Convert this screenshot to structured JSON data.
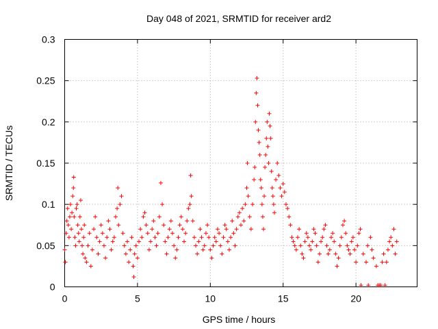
{
  "chart_data": {
    "type": "scatter",
    "title": "Day 048 of 2021, SRMTID for receiver ard2",
    "xlabel": "GPS time / hours",
    "ylabel": "SRMTID / TECUs",
    "xlim": [
      0,
      24.2
    ],
    "ylim": [
      0,
      0.3
    ],
    "x_ticks": [
      "0",
      "5",
      "10",
      "15",
      "20"
    ],
    "y_ticks": [
      "0",
      "0.05",
      "0.1",
      "0.15",
      "0.2",
      "0.25",
      "0.3"
    ],
    "grid": true,
    "marker": "plus",
    "series": [
      {
        "name": "SRMTID",
        "color": "#ff0000",
        "note": "dense scatter of ~2000 points; representative points listed below",
        "points": [
          [
            0.0,
            0.045
          ],
          [
            0.05,
            0.03
          ],
          [
            0.1,
            0.065
          ],
          [
            0.15,
            0.08
          ],
          [
            0.2,
            0.095
          ],
          [
            0.25,
            0.075
          ],
          [
            0.3,
            0.06
          ],
          [
            0.35,
            0.085
          ],
          [
            0.4,
            0.1
          ],
          [
            0.45,
            0.07
          ],
          [
            0.5,
            0.09
          ],
          [
            0.55,
            0.11
          ],
          [
            0.6,
            0.12
          ],
          [
            0.62,
            0.133
          ],
          [
            0.65,
            0.085
          ],
          [
            0.7,
            0.06
          ],
          [
            0.75,
            0.05
          ],
          [
            0.8,
            0.095
          ],
          [
            0.85,
            0.1
          ],
          [
            0.9,
            0.075
          ],
          [
            0.95,
            0.065
          ],
          [
            1.0,
            0.055
          ],
          [
            1.05,
            0.085
          ],
          [
            1.1,
            0.105
          ],
          [
            1.15,
            0.07
          ],
          [
            1.2,
            0.05
          ],
          [
            1.25,
            0.04
          ],
          [
            1.3,
            0.06
          ],
          [
            1.35,
            0.075
          ],
          [
            1.4,
            0.035
          ],
          [
            1.5,
            0.03
          ],
          [
            1.6,
            0.05
          ],
          [
            1.7,
            0.065
          ],
          [
            1.8,
            0.025
          ],
          [
            1.9,
            0.045
          ],
          [
            2.0,
            0.07
          ],
          [
            2.1,
            0.085
          ],
          [
            2.2,
            0.06
          ],
          [
            2.3,
            0.04
          ],
          [
            2.4,
            0.055
          ],
          [
            2.5,
            0.075
          ],
          [
            2.6,
            0.065
          ],
          [
            2.7,
            0.05
          ],
          [
            2.8,
            0.035
          ],
          [
            2.9,
            0.06
          ],
          [
            3.0,
            0.08
          ],
          [
            3.1,
            0.07
          ],
          [
            3.2,
            0.045
          ],
          [
            3.3,
            0.055
          ],
          [
            3.4,
            0.06
          ],
          [
            3.5,
            0.085
          ],
          [
            3.6,
            0.095
          ],
          [
            3.65,
            0.12
          ],
          [
            3.7,
            0.075
          ],
          [
            3.8,
            0.1
          ],
          [
            3.9,
            0.11
          ],
          [
            4.0,
            0.065
          ],
          [
            4.1,
            0.05
          ],
          [
            4.2,
            0.04
          ],
          [
            4.3,
            0.055
          ],
          [
            4.4,
            0.03
          ],
          [
            4.5,
            0.045
          ],
          [
            4.6,
            0.06
          ],
          [
            4.7,
            0.025
          ],
          [
            4.75,
            0.012
          ],
          [
            4.8,
            0.04
          ],
          [
            4.9,
            0.05
          ],
          [
            5.0,
            0.035
          ],
          [
            5.1,
            0.055
          ],
          [
            5.2,
            0.07
          ],
          [
            5.3,
            0.06
          ],
          [
            5.4,
            0.085
          ],
          [
            5.5,
            0.09
          ],
          [
            5.6,
            0.075
          ],
          [
            5.7,
            0.065
          ],
          [
            5.8,
            0.045
          ],
          [
            5.9,
            0.055
          ],
          [
            6.0,
            0.07
          ],
          [
            6.1,
            0.08
          ],
          [
            6.2,
            0.06
          ],
          [
            6.3,
            0.05
          ],
          [
            6.4,
            0.065
          ],
          [
            6.5,
            0.085
          ],
          [
            6.6,
            0.126
          ],
          [
            6.7,
            0.1
          ],
          [
            6.8,
            0.075
          ],
          [
            6.9,
            0.055
          ],
          [
            7.0,
            0.04
          ],
          [
            7.1,
            0.06
          ],
          [
            7.2,
            0.07
          ],
          [
            7.3,
            0.08
          ],
          [
            7.4,
            0.065
          ],
          [
            7.5,
            0.05
          ],
          [
            7.6,
            0.035
          ],
          [
            7.7,
            0.045
          ],
          [
            7.8,
            0.06
          ],
          [
            7.9,
            0.075
          ],
          [
            8.0,
            0.085
          ],
          [
            8.1,
            0.07
          ],
          [
            8.2,
            0.055
          ],
          [
            8.3,
            0.065
          ],
          [
            8.4,
            0.08
          ],
          [
            8.5,
            0.095
          ],
          [
            8.6,
            0.1
          ],
          [
            8.65,
            0.135
          ],
          [
            8.7,
            0.11
          ],
          [
            8.8,
            0.08
          ],
          [
            8.9,
            0.06
          ],
          [
            9.0,
            0.05
          ],
          [
            9.1,
            0.04
          ],
          [
            9.2,
            0.055
          ],
          [
            9.3,
            0.07
          ],
          [
            9.4,
            0.06
          ],
          [
            9.5,
            0.045
          ],
          [
            9.6,
            0.05
          ],
          [
            9.7,
            0.065
          ],
          [
            9.8,
            0.075
          ],
          [
            9.9,
            0.06
          ],
          [
            10.0,
            0.045
          ],
          [
            10.1,
            0.035
          ],
          [
            10.2,
            0.05
          ],
          [
            10.3,
            0.06
          ],
          [
            10.4,
            0.055
          ],
          [
            10.5,
            0.07
          ],
          [
            10.6,
            0.065
          ],
          [
            10.7,
            0.05
          ],
          [
            10.8,
            0.04
          ],
          [
            10.9,
            0.06
          ],
          [
            11.0,
            0.075
          ],
          [
            11.1,
            0.07
          ],
          [
            11.2,
            0.055
          ],
          [
            11.3,
            0.045
          ],
          [
            11.4,
            0.06
          ],
          [
            11.5,
            0.08
          ],
          [
            11.6,
            0.065
          ],
          [
            11.7,
            0.05
          ],
          [
            11.8,
            0.07
          ],
          [
            11.9,
            0.085
          ],
          [
            12.0,
            0.09
          ],
          [
            12.1,
            0.075
          ],
          [
            12.2,
            0.095
          ],
          [
            12.3,
            0.08
          ],
          [
            12.4,
            0.1
          ],
          [
            12.5,
            0.12
          ],
          [
            12.55,
            0.15
          ],
          [
            12.6,
            0.11
          ],
          [
            12.7,
            0.085
          ],
          [
            12.8,
            0.07
          ],
          [
            12.9,
            0.1
          ],
          [
            13.0,
            0.13
          ],
          [
            13.05,
            0.145
          ],
          [
            13.1,
            0.2
          ],
          [
            13.15,
            0.235
          ],
          [
            13.2,
            0.253
          ],
          [
            13.25,
            0.22
          ],
          [
            13.3,
            0.19
          ],
          [
            13.35,
            0.175
          ],
          [
            13.4,
            0.16
          ],
          [
            13.45,
            0.13
          ],
          [
            13.5,
            0.12
          ],
          [
            13.55,
            0.1
          ],
          [
            13.6,
            0.085
          ],
          [
            13.65,
            0.07
          ],
          [
            13.7,
            0.11
          ],
          [
            13.75,
            0.145
          ],
          [
            13.8,
            0.16
          ],
          [
            13.85,
            0.18
          ],
          [
            13.9,
            0.2
          ],
          [
            13.95,
            0.17
          ],
          [
            14.0,
            0.15
          ],
          [
            14.05,
            0.21
          ],
          [
            14.1,
            0.195
          ],
          [
            14.15,
            0.18
          ],
          [
            14.2,
            0.14
          ],
          [
            14.25,
            0.12
          ],
          [
            14.3,
            0.11
          ],
          [
            14.35,
            0.1
          ],
          [
            14.4,
            0.09
          ],
          [
            14.5,
            0.13
          ],
          [
            14.6,
            0.15
          ],
          [
            14.7,
            0.135
          ],
          [
            14.8,
            0.12
          ],
          [
            14.9,
            0.11
          ],
          [
            15.0,
            0.125
          ],
          [
            15.1,
            0.115
          ],
          [
            15.2,
            0.1
          ],
          [
            15.3,
            0.095
          ],
          [
            15.4,
            0.085
          ],
          [
            15.5,
            0.075
          ],
          [
            15.6,
            0.06
          ],
          [
            15.7,
            0.055
          ],
          [
            15.8,
            0.05
          ],
          [
            15.9,
            0.045
          ],
          [
            16.0,
            0.06
          ],
          [
            16.1,
            0.07
          ],
          [
            16.2,
            0.05
          ],
          [
            16.3,
            0.04
          ],
          [
            16.4,
            0.035
          ],
          [
            16.5,
            0.055
          ],
          [
            16.6,
            0.065
          ],
          [
            16.7,
            0.06
          ],
          [
            16.8,
            0.05
          ],
          [
            16.9,
            0.045
          ],
          [
            17.0,
            0.055
          ],
          [
            17.1,
            0.07
          ],
          [
            17.2,
            0.065
          ],
          [
            17.3,
            0.05
          ],
          [
            17.4,
            0.03
          ],
          [
            17.5,
            0.04
          ],
          [
            17.6,
            0.055
          ],
          [
            17.7,
            0.06
          ],
          [
            17.8,
            0.07
          ],
          [
            17.9,
            0.075
          ],
          [
            18.0,
            0.05
          ],
          [
            18.1,
            0.04
          ],
          [
            18.2,
            0.045
          ],
          [
            18.3,
            0.06
          ],
          [
            18.4,
            0.065
          ],
          [
            18.5,
            0.055
          ],
          [
            18.6,
            0.04
          ],
          [
            18.7,
            0.025
          ],
          [
            18.8,
            0.035
          ],
          [
            18.9,
            0.05
          ],
          [
            19.0,
            0.06
          ],
          [
            19.1,
            0.075
          ],
          [
            19.2,
            0.08
          ],
          [
            19.3,
            0.065
          ],
          [
            19.4,
            0.05
          ],
          [
            19.5,
            0.045
          ],
          [
            19.6,
            0.04
          ],
          [
            19.7,
            0.055
          ],
          [
            19.8,
            0.06
          ],
          [
            19.9,
            0.045
          ],
          [
            20.0,
            0.03
          ],
          [
            20.1,
            0.05
          ],
          [
            20.2,
            0.065
          ],
          [
            20.3,
            0.07
          ],
          [
            20.35,
            0.002
          ],
          [
            20.5,
            0.04
          ],
          [
            20.7,
            0.03
          ],
          [
            20.8,
            0.05
          ],
          [
            20.85,
            0.002
          ],
          [
            21.0,
            0.06
          ],
          [
            21.1,
            0.045
          ],
          [
            21.2,
            0.035
          ],
          [
            21.4,
            0.025
          ],
          [
            21.5,
            0.002
          ],
          [
            21.6,
            0.002
          ],
          [
            21.7,
            0.002
          ],
          [
            21.8,
            0.03
          ],
          [
            21.9,
            0.04
          ],
          [
            22.0,
            0.002
          ],
          [
            22.1,
            0.03
          ],
          [
            22.2,
            0.045
          ],
          [
            22.3,
            0.055
          ],
          [
            22.4,
            0.06
          ],
          [
            22.5,
            0.05
          ],
          [
            22.6,
            0.07
          ],
          [
            22.7,
            0.04
          ],
          [
            22.8,
            0.055
          ]
        ]
      }
    ]
  }
}
